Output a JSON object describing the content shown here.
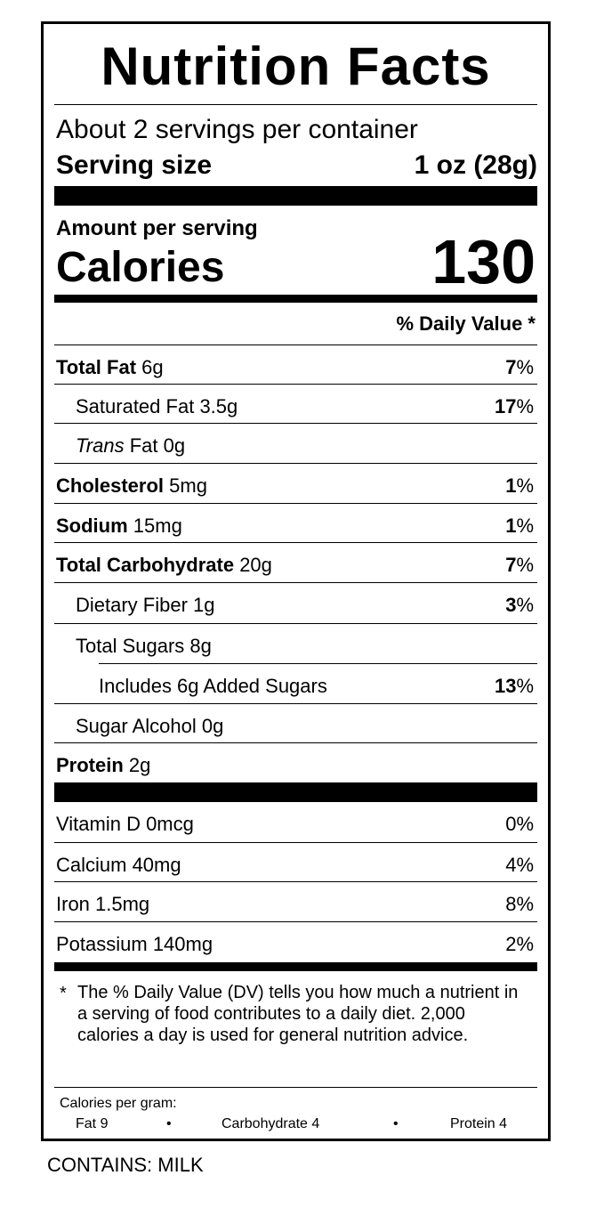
{
  "title": "Nutrition Facts",
  "servings_per_container": "About 2 servings per container",
  "serving_size_label": "Serving size",
  "serving_size_value": "1 oz (28g)",
  "amount_per_serving": "Amount per serving",
  "calories_label": "Calories",
  "calories_value": "130",
  "daily_value_header": "% Daily Value *",
  "nutrients": [
    {
      "name": "Total Fat",
      "amount": "6g",
      "dv": "7"
    },
    {
      "name": "Saturated Fat",
      "amount": "3.5g",
      "dv": "17"
    },
    {
      "name_italic": "Trans",
      "name": "Fat",
      "amount": "0g",
      "dv": ""
    },
    {
      "name": "Cholesterol",
      "amount": "5mg",
      "dv": "1"
    },
    {
      "name": "Sodium",
      "amount": "15mg",
      "dv": "1"
    },
    {
      "name": "Total Carbohydrate",
      "amount": "20g",
      "dv": "7"
    },
    {
      "name": "Dietary Fiber",
      "amount": "1g",
      "dv": "3"
    },
    {
      "name": "Total Sugars",
      "amount": "8g",
      "dv": ""
    },
    {
      "name": "Includes 6g Added Sugars",
      "amount": "",
      "dv": "13"
    },
    {
      "name": "Sugar Alcohol",
      "amount": "0g",
      "dv": ""
    },
    {
      "name": "Protein",
      "amount": "2g",
      "dv": ""
    }
  ],
  "percent_sign": "%",
  "vitamins": [
    {
      "name": "Vitamin D 0mcg",
      "dv": "0%"
    },
    {
      "name": "Calcium 40mg",
      "dv": "4%"
    },
    {
      "name": "Iron 1.5mg",
      "dv": "8%"
    },
    {
      "name": "Potassium 140mg",
      "dv": "2%"
    }
  ],
  "footnote_star": "*",
  "footnote": "The % Daily Value (DV) tells you how much a nutrient in a serving of food contributes to a daily diet. 2,000 calories a day is used for general nutrition advice.",
  "calories_per_gram": {
    "label": "Calories per gram:",
    "fat": "Fat 9",
    "carbohydrate": "Carbohydrate 4",
    "protein": "Protein 4",
    "bullet": "•"
  },
  "contains": "CONTAINS: MILK"
}
